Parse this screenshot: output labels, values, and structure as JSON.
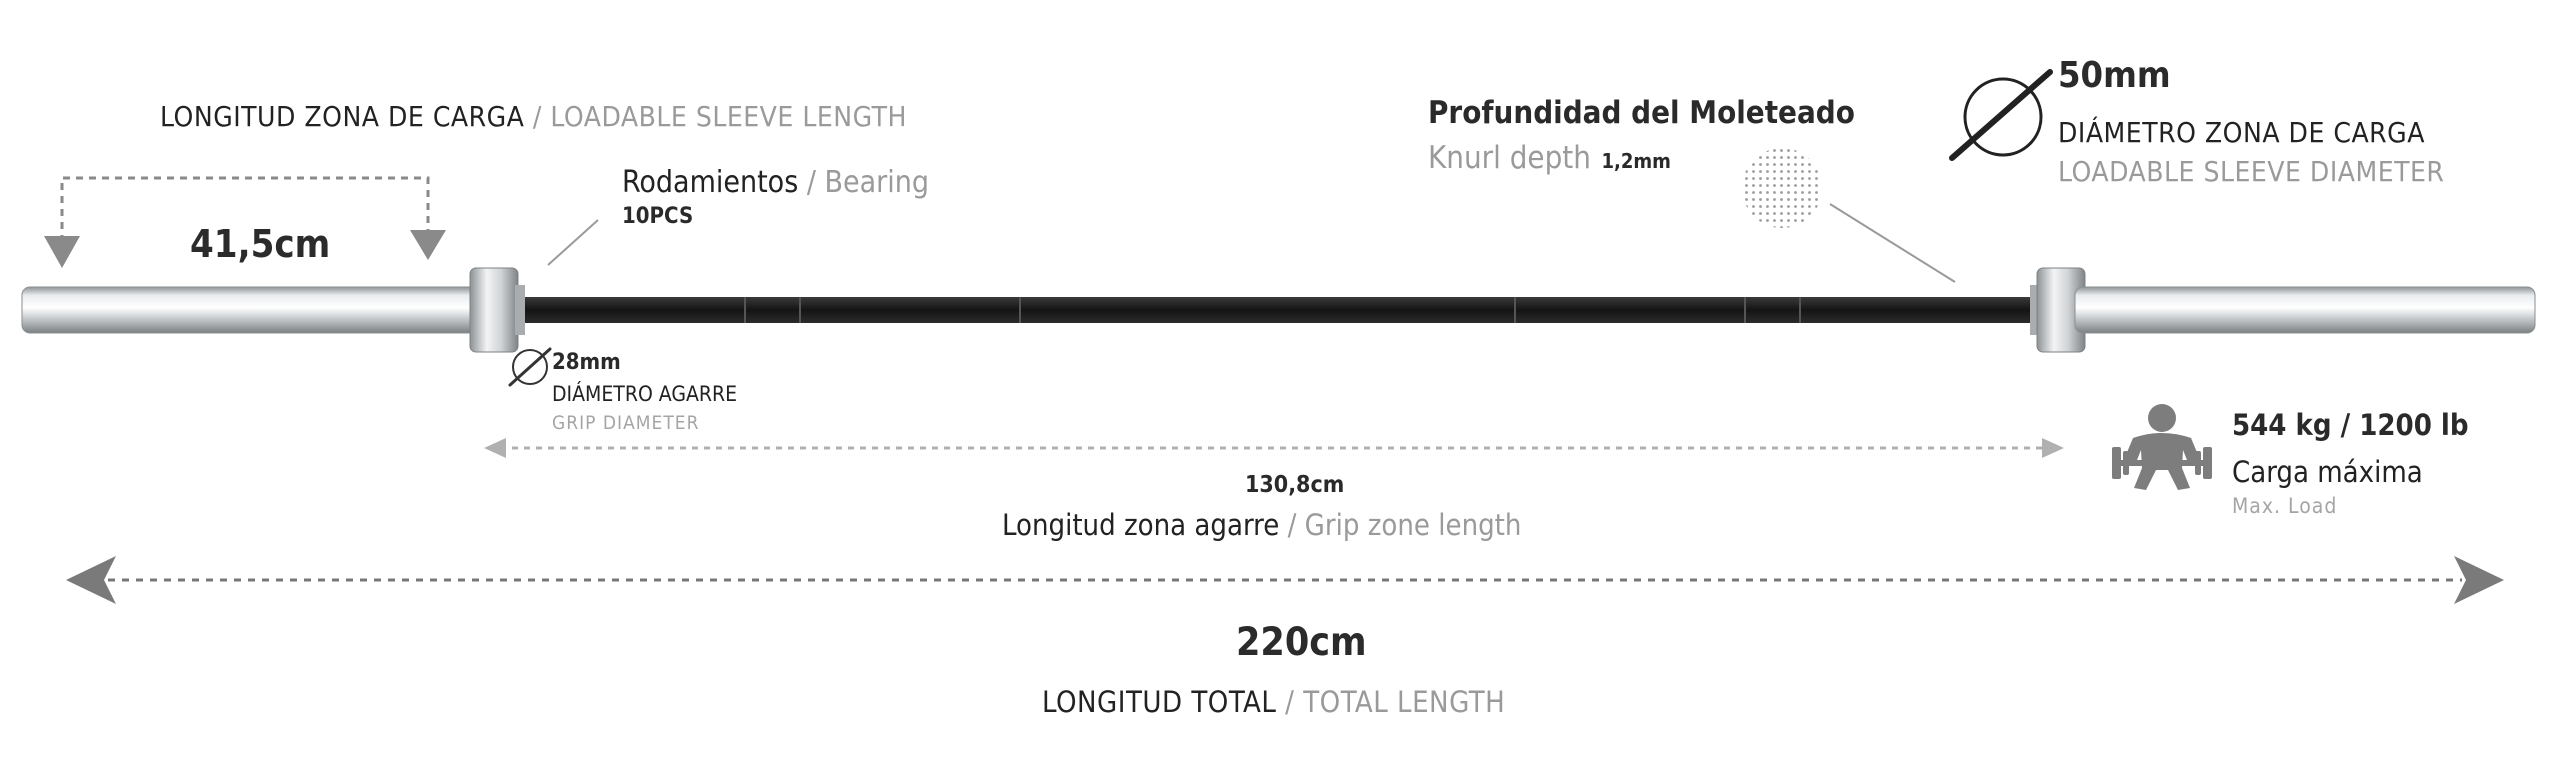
{
  "sleeve": {
    "title_es": "LONGITUD ZONA DE CARGA",
    "title_en": "/ LOADABLE SLEEVE LENGTH",
    "value": "41,5cm"
  },
  "bearing": {
    "label_es": "Rodamientos",
    "label_en": "/ Bearing",
    "count": "10PCS"
  },
  "knurl": {
    "title_es": "Profundidad del Moleteado",
    "title_en": "Knurl depth",
    "value": "1,2mm"
  },
  "sleeve_diameter": {
    "value": "50mm",
    "title_es": "DIÁMETRO ZONA DE CARGA",
    "title_en": "LOADABLE SLEEVE DIAMETER"
  },
  "grip_diameter": {
    "value": "28mm",
    "title_es": "DIÁMETRO AGARRE",
    "title_en": "GRIP DIAMETER"
  },
  "grip_zone": {
    "value": "130,8cm",
    "title_es": "Longitud zona agarre",
    "title_en": "/ Grip zone length"
  },
  "max_load": {
    "value": "544 kg / 1200 lb",
    "title_es": "Carga máxima",
    "title_en": "Max. Load"
  },
  "total": {
    "value": "220cm",
    "title_es": "LONGITUD TOTAL",
    "title_en": "/ TOTAL LENGTH"
  },
  "icons": [
    "diameter-icon",
    "knurl-texture-icon",
    "weightlifter-icon",
    "arrow-icon"
  ],
  "colors": {
    "shaft": "#1e1e1e",
    "sleeve": "#c9ccce",
    "arrow": "#8a8a8a",
    "text_secondary": "#9a9a9a"
  }
}
